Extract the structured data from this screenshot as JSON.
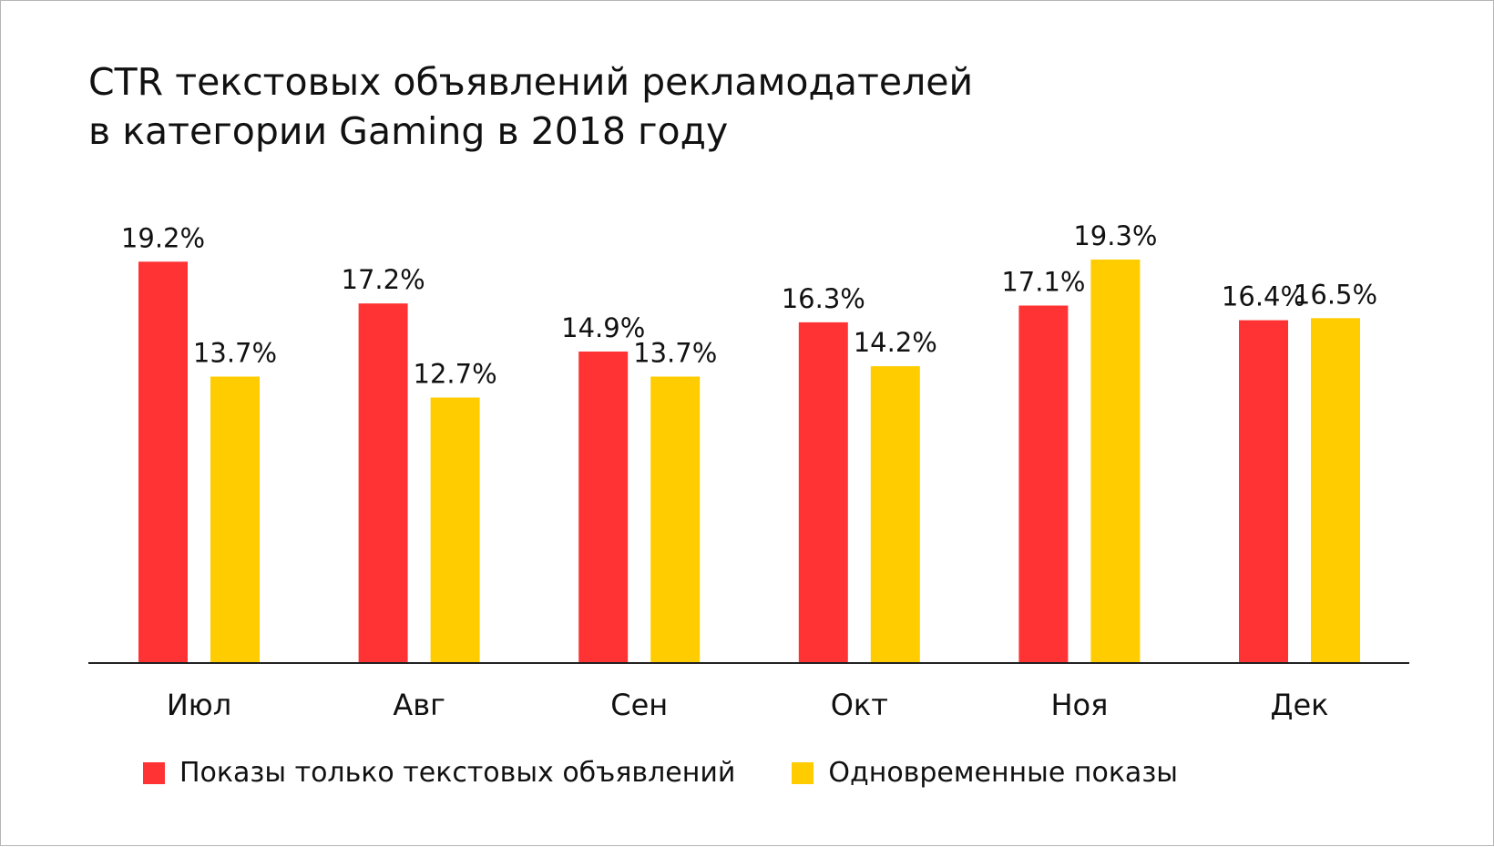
{
  "title_lines": [
    "CTR текстовых объявлений рекламодателей",
    "в категории Gaming в 2018 году"
  ],
  "colors": {
    "series_1": "#ff3333",
    "series_2": "#ffcc00",
    "axis": "#222222",
    "text": "#111111"
  },
  "chart_data": {
    "type": "bar",
    "title": "CTR текстовых объявлений рекламодателей в категории Gaming в 2018 году",
    "categories": [
      "Июл",
      "Авг",
      "Сен",
      "Окт",
      "Ноя",
      "Дек"
    ],
    "series": [
      {
        "name": "Показы только текстовых объявлений",
        "values": [
          19.2,
          17.2,
          14.9,
          16.3,
          17.1,
          16.4
        ],
        "labels": [
          "19.2%",
          "17.2%",
          "14.9%",
          "16.3%",
          "17.1%",
          "16.4%"
        ]
      },
      {
        "name": "Одновременные показы",
        "values": [
          13.7,
          12.7,
          13.7,
          14.2,
          19.3,
          16.5
        ],
        "labels": [
          "13.7%",
          "12.7%",
          "13.7%",
          "14.2%",
          "19.3%",
          "16.5%"
        ]
      }
    ],
    "ylim": [
      0,
      19.3
    ],
    "grid": false,
    "legend": "bottom"
  }
}
